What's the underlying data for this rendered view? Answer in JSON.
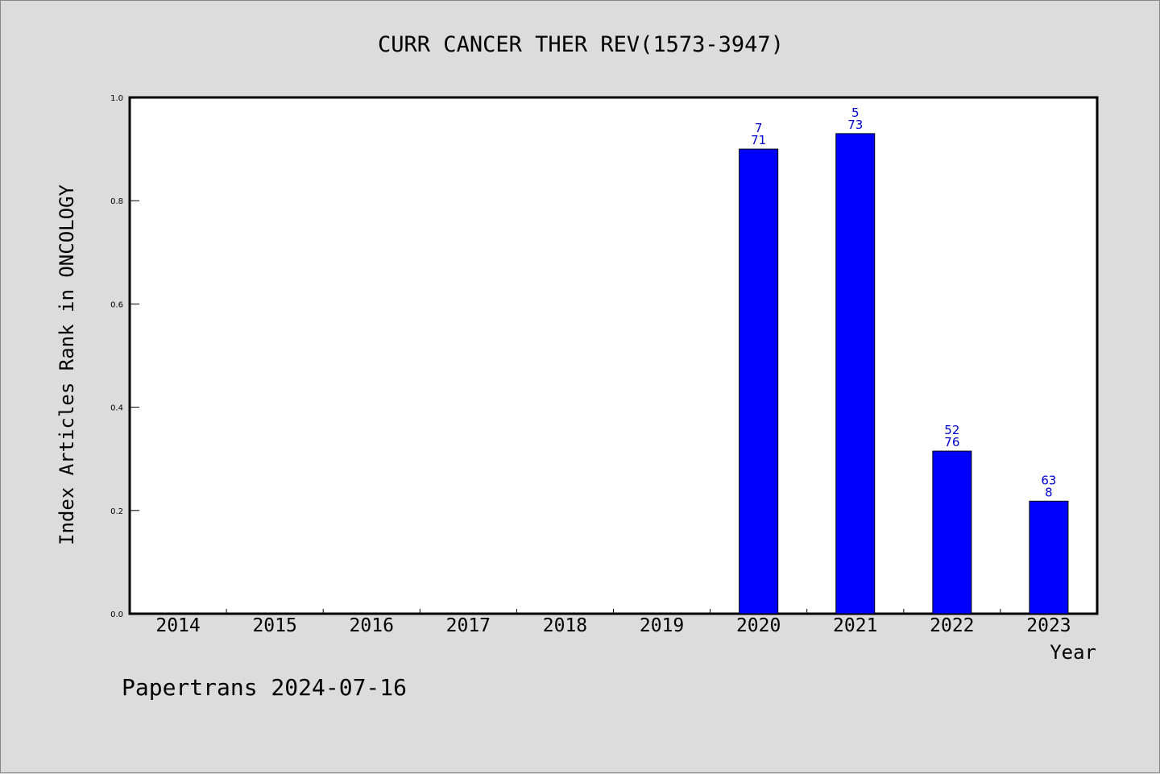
{
  "colors": {
    "background": "#dcdcdc",
    "plot_background": "#ffffff",
    "bar": "#0000ff",
    "bar_label": "#0000cc"
  },
  "footer": "Papertrans 2024-07-16",
  "chart_data": {
    "type": "bar",
    "title": "CURR CANCER THER REV(1573-3947)",
    "xlabel": "Year",
    "ylabel": "Index Articles Rank in ONCOLOGY",
    "categories": [
      "2014",
      "2015",
      "2016",
      "2017",
      "2018",
      "2019",
      "2020",
      "2021",
      "2022",
      "2023"
    ],
    "values": [
      null,
      null,
      null,
      null,
      null,
      null,
      0.9,
      0.93,
      0.315,
      0.218
    ],
    "bar_labels": [
      null,
      null,
      null,
      null,
      null,
      null,
      [
        "7",
        "71"
      ],
      [
        "5",
        "73"
      ],
      [
        "52",
        "76"
      ],
      [
        "63",
        "8"
      ]
    ],
    "ylim": [
      0,
      1.0
    ],
    "yticks": [
      "0.0",
      "0.2",
      "0.4",
      "0.6",
      "0.8",
      "1.0"
    ],
    "grid": false,
    "legend": "none"
  }
}
